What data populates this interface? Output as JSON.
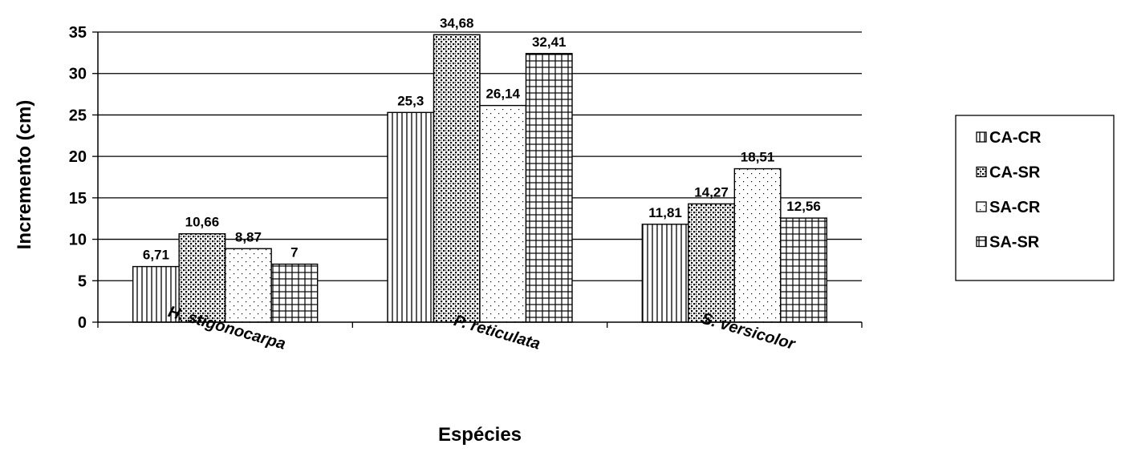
{
  "chart_data": {
    "type": "bar",
    "title": "",
    "xlabel": "Espécies",
    "ylabel": "Incremento (cm)",
    "ylim": [
      0,
      35
    ],
    "yticks": [
      0,
      5,
      10,
      15,
      20,
      25,
      30,
      35
    ],
    "grid": true,
    "legend_position": "right",
    "categories": [
      "H. stigonocarpa",
      "P. reticulata",
      "S. versicolor"
    ],
    "series": [
      {
        "name": "CA-CR",
        "pattern": "vertical-lines",
        "values": [
          6.71,
          25.3,
          11.81
        ],
        "labels": [
          "6,71",
          "25,3",
          "11,81"
        ]
      },
      {
        "name": "CA-SR",
        "pattern": "dense-dots",
        "values": [
          10.66,
          34.68,
          14.27
        ],
        "labels": [
          "10,66",
          "34,68",
          "14,27"
        ]
      },
      {
        "name": "SA-CR",
        "pattern": "sparse-dots",
        "values": [
          8.87,
          26.14,
          18.51
        ],
        "labels": [
          "8,87",
          "26,14",
          "18,51"
        ]
      },
      {
        "name": "SA-SR",
        "pattern": "grid",
        "values": [
          7,
          32.41,
          12.56
        ],
        "labels": [
          "7",
          "32,41",
          "12,56"
        ]
      }
    ]
  }
}
